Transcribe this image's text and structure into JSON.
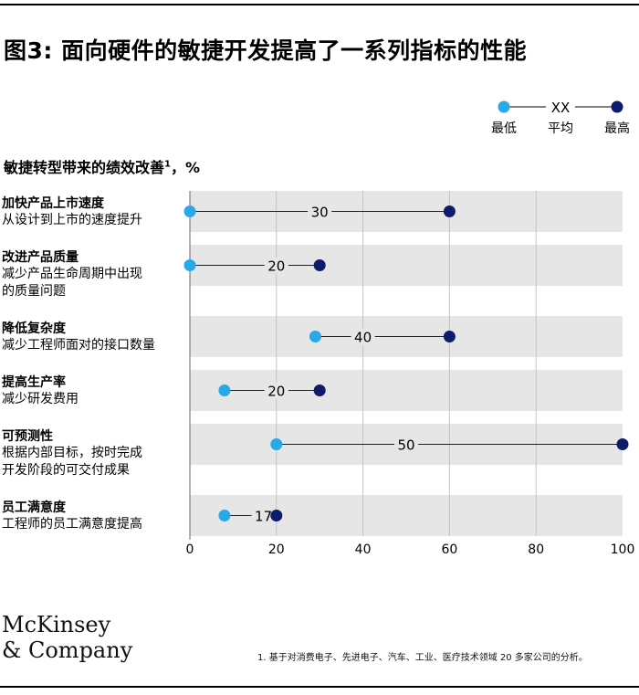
{
  "title": "图3: 面向硬件的敏捷开发提高了一系列指标的性能",
  "subtitle": "敏捷转型带来的绩效改善",
  "subtitle_sup": "1",
  "subtitle_unit": "，%",
  "legend": {
    "min_label": "最低",
    "avg_label": "平均",
    "max_label": "最高",
    "avg_marker": "XX",
    "min_color": "#29a9e7",
    "max_color": "#0e1a6b"
  },
  "chart_data": {
    "type": "dumbbell",
    "xlim": [
      0,
      100
    ],
    "xticks": [
      0,
      20,
      40,
      60,
      80,
      100
    ],
    "grid": true,
    "categories": [
      {
        "name": "加快产品上市速度",
        "desc": [
          "从设计到上市的速度提升"
        ],
        "min": 0,
        "max": 60,
        "avg": 30
      },
      {
        "name": "改进产品质量",
        "desc": [
          "减少产品生命周期中出现",
          "的质量问题"
        ],
        "min": 0,
        "max": 30,
        "avg": 20
      },
      {
        "name": "降低复杂度",
        "desc": [
          "减少工程师面对的接口数量"
        ],
        "min": 29,
        "max": 60,
        "avg": 40
      },
      {
        "name": "提高生产率",
        "desc": [
          "减少研发费用"
        ],
        "min": 8,
        "max": 30,
        "avg": 20
      },
      {
        "name": "可预测性",
        "desc": [
          "根据内部目标，按时完成",
          "开发阶段的可交付成果"
        ],
        "min": 20,
        "max": 100,
        "avg": 50
      },
      {
        "name": "员工满意度",
        "desc": [
          "工程师的员工满意度提高"
        ],
        "min": 8,
        "max": 20,
        "avg": 17
      }
    ]
  },
  "logo": {
    "line1": "McKinsey",
    "line2": "& Company"
  },
  "footnote": "1.    基于对消费电子、先进电子、汽车、工业、医疗技术领域 20 多家公司的分析。"
}
